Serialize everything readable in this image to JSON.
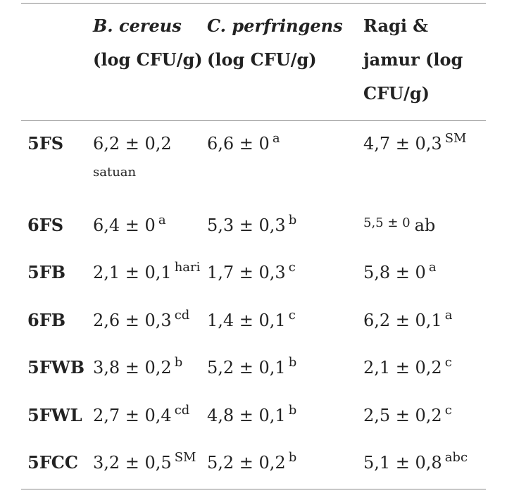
{
  "header": {
    "col1_italic": "B. cereus",
    "col1_unit": "(log CFU/g)",
    "col2_italic": "C. perfringens",
    "col2_unit": "(log CFU/g)",
    "col3_line1": "Ragi &",
    "col3_line2": "jamur (log",
    "col3_line3": "CFU/g)"
  },
  "rows": [
    {
      "label": "5FS",
      "c1": "6,2 ± 0,2",
      "c1_sup": "",
      "c1_note": "satuan",
      "c2": "6,6 ± 0",
      "c2_sup": "a",
      "c3": "4,7 ± 0,3",
      "c3_sup": "SM"
    },
    {
      "label": "6FS",
      "c1": "6,4 ± 0",
      "c1_sup": "a",
      "c2": "5,3 ± 0,3",
      "c2_sup": "b",
      "c3_small": "5,5 ± 0",
      "c3_after": "ab"
    },
    {
      "label": "5FB",
      "c1": "2,1 ± 0,1",
      "c1_sup": "hari",
      "c2": "1,7 ± 0,3",
      "c2_sup": "c",
      "c3": "5,8 ± 0",
      "c3_sup": "a"
    },
    {
      "label": "6FB",
      "c1": "2,6 ± 0,3",
      "c1_sup": "cd",
      "c2": "1,4 ± 0,1",
      "c2_sup": "c",
      "c3": "6,2 ± 0,1",
      "c3_sup": "a"
    },
    {
      "label": "5FWB",
      "c1": "3,8 ± 0,2",
      "c1_sup": "b",
      "c2": "5,2 ± 0,1",
      "c2_sup": "b",
      "c3": "2,1 ± 0,2",
      "c3_sup": "c"
    },
    {
      "label": "5FWL",
      "c1": "2,7 ± 0,4",
      "c1_sup": "cd",
      "c2": "4,8 ± 0,1",
      "c2_sup": "b",
      "c3": "2,5 ± 0,2",
      "c3_sup": "c"
    },
    {
      "label": "5FCC",
      "c1": "3,2 ± 0,5",
      "c1_sup": "SM",
      "c2": "5,2 ± 0,2",
      "c2_sup": "b",
      "c3": "5,1 ± 0,8",
      "c3_sup": "abc"
    }
  ]
}
